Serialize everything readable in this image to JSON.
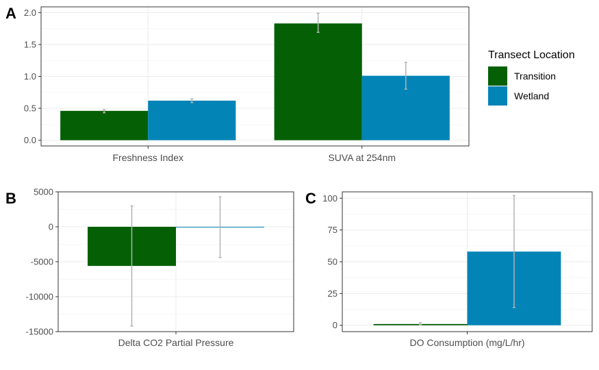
{
  "legend": {
    "title": "Transect Location",
    "entries": [
      {
        "name": "Transition",
        "color": "#056005"
      },
      {
        "name": "Wetland",
        "color": "#0384b7"
      }
    ]
  },
  "colors": {
    "panel_border": "#333333",
    "grid_major": "#ebebeb",
    "grid_minor": "#f5f5f5",
    "error_bar": "#b3b3b3"
  },
  "chart_data": [
    {
      "panel": "A",
      "type": "bar",
      "categories": [
        "Freshness Index",
        "SUVA at 254nm"
      ],
      "series": [
        {
          "name": "Transition",
          "values": [
            0.46,
            1.83
          ],
          "err_low": [
            0.43,
            1.69
          ],
          "err_high": [
            0.48,
            1.99
          ]
        },
        {
          "name": "Wetland",
          "values": [
            0.62,
            1.01
          ],
          "err_low": [
            0.59,
            0.8
          ],
          "err_high": [
            0.65,
            1.22
          ]
        }
      ],
      "ylim": [
        -0.09,
        2.09
      ],
      "yticks": [
        0.0,
        0.5,
        1.0,
        1.5,
        2.0
      ],
      "ytick_labels": [
        "0.0",
        "0.5",
        "1.0",
        "1.5",
        "2.0"
      ],
      "grid": true,
      "legend_position": "right"
    },
    {
      "panel": "B",
      "type": "bar",
      "categories": [
        "Delta CO2 Partial Pressure"
      ],
      "series": [
        {
          "name": "Transition",
          "values": [
            -5600
          ],
          "err_low": [
            -14200
          ],
          "err_high": [
            3000
          ]
        },
        {
          "name": "Wetland",
          "values": [
            0
          ],
          "err_low": [
            -4400
          ],
          "err_high": [
            4300
          ]
        }
      ],
      "ylim": [
        -15000,
        5000
      ],
      "yticks": [
        -15000,
        -10000,
        -5000,
        0,
        5000
      ],
      "ytick_labels": [
        "-15000",
        "-10000",
        "-5000",
        "0",
        "5000"
      ],
      "grid": true
    },
    {
      "panel": "C",
      "type": "bar",
      "categories": [
        "DO Consumption (mg/L/hr)"
      ],
      "series": [
        {
          "name": "Transition",
          "values": [
            1
          ],
          "err_low": [
            0.5
          ],
          "err_high": [
            2
          ]
        },
        {
          "name": "Wetland",
          "values": [
            58
          ],
          "err_low": [
            14
          ],
          "err_high": [
            102
          ]
        }
      ],
      "ylim": [
        -5,
        105
      ],
      "yticks": [
        0,
        25,
        50,
        75,
        100
      ],
      "ytick_labels": [
        "0",
        "25",
        "50",
        "75",
        "100"
      ],
      "grid": true
    }
  ]
}
